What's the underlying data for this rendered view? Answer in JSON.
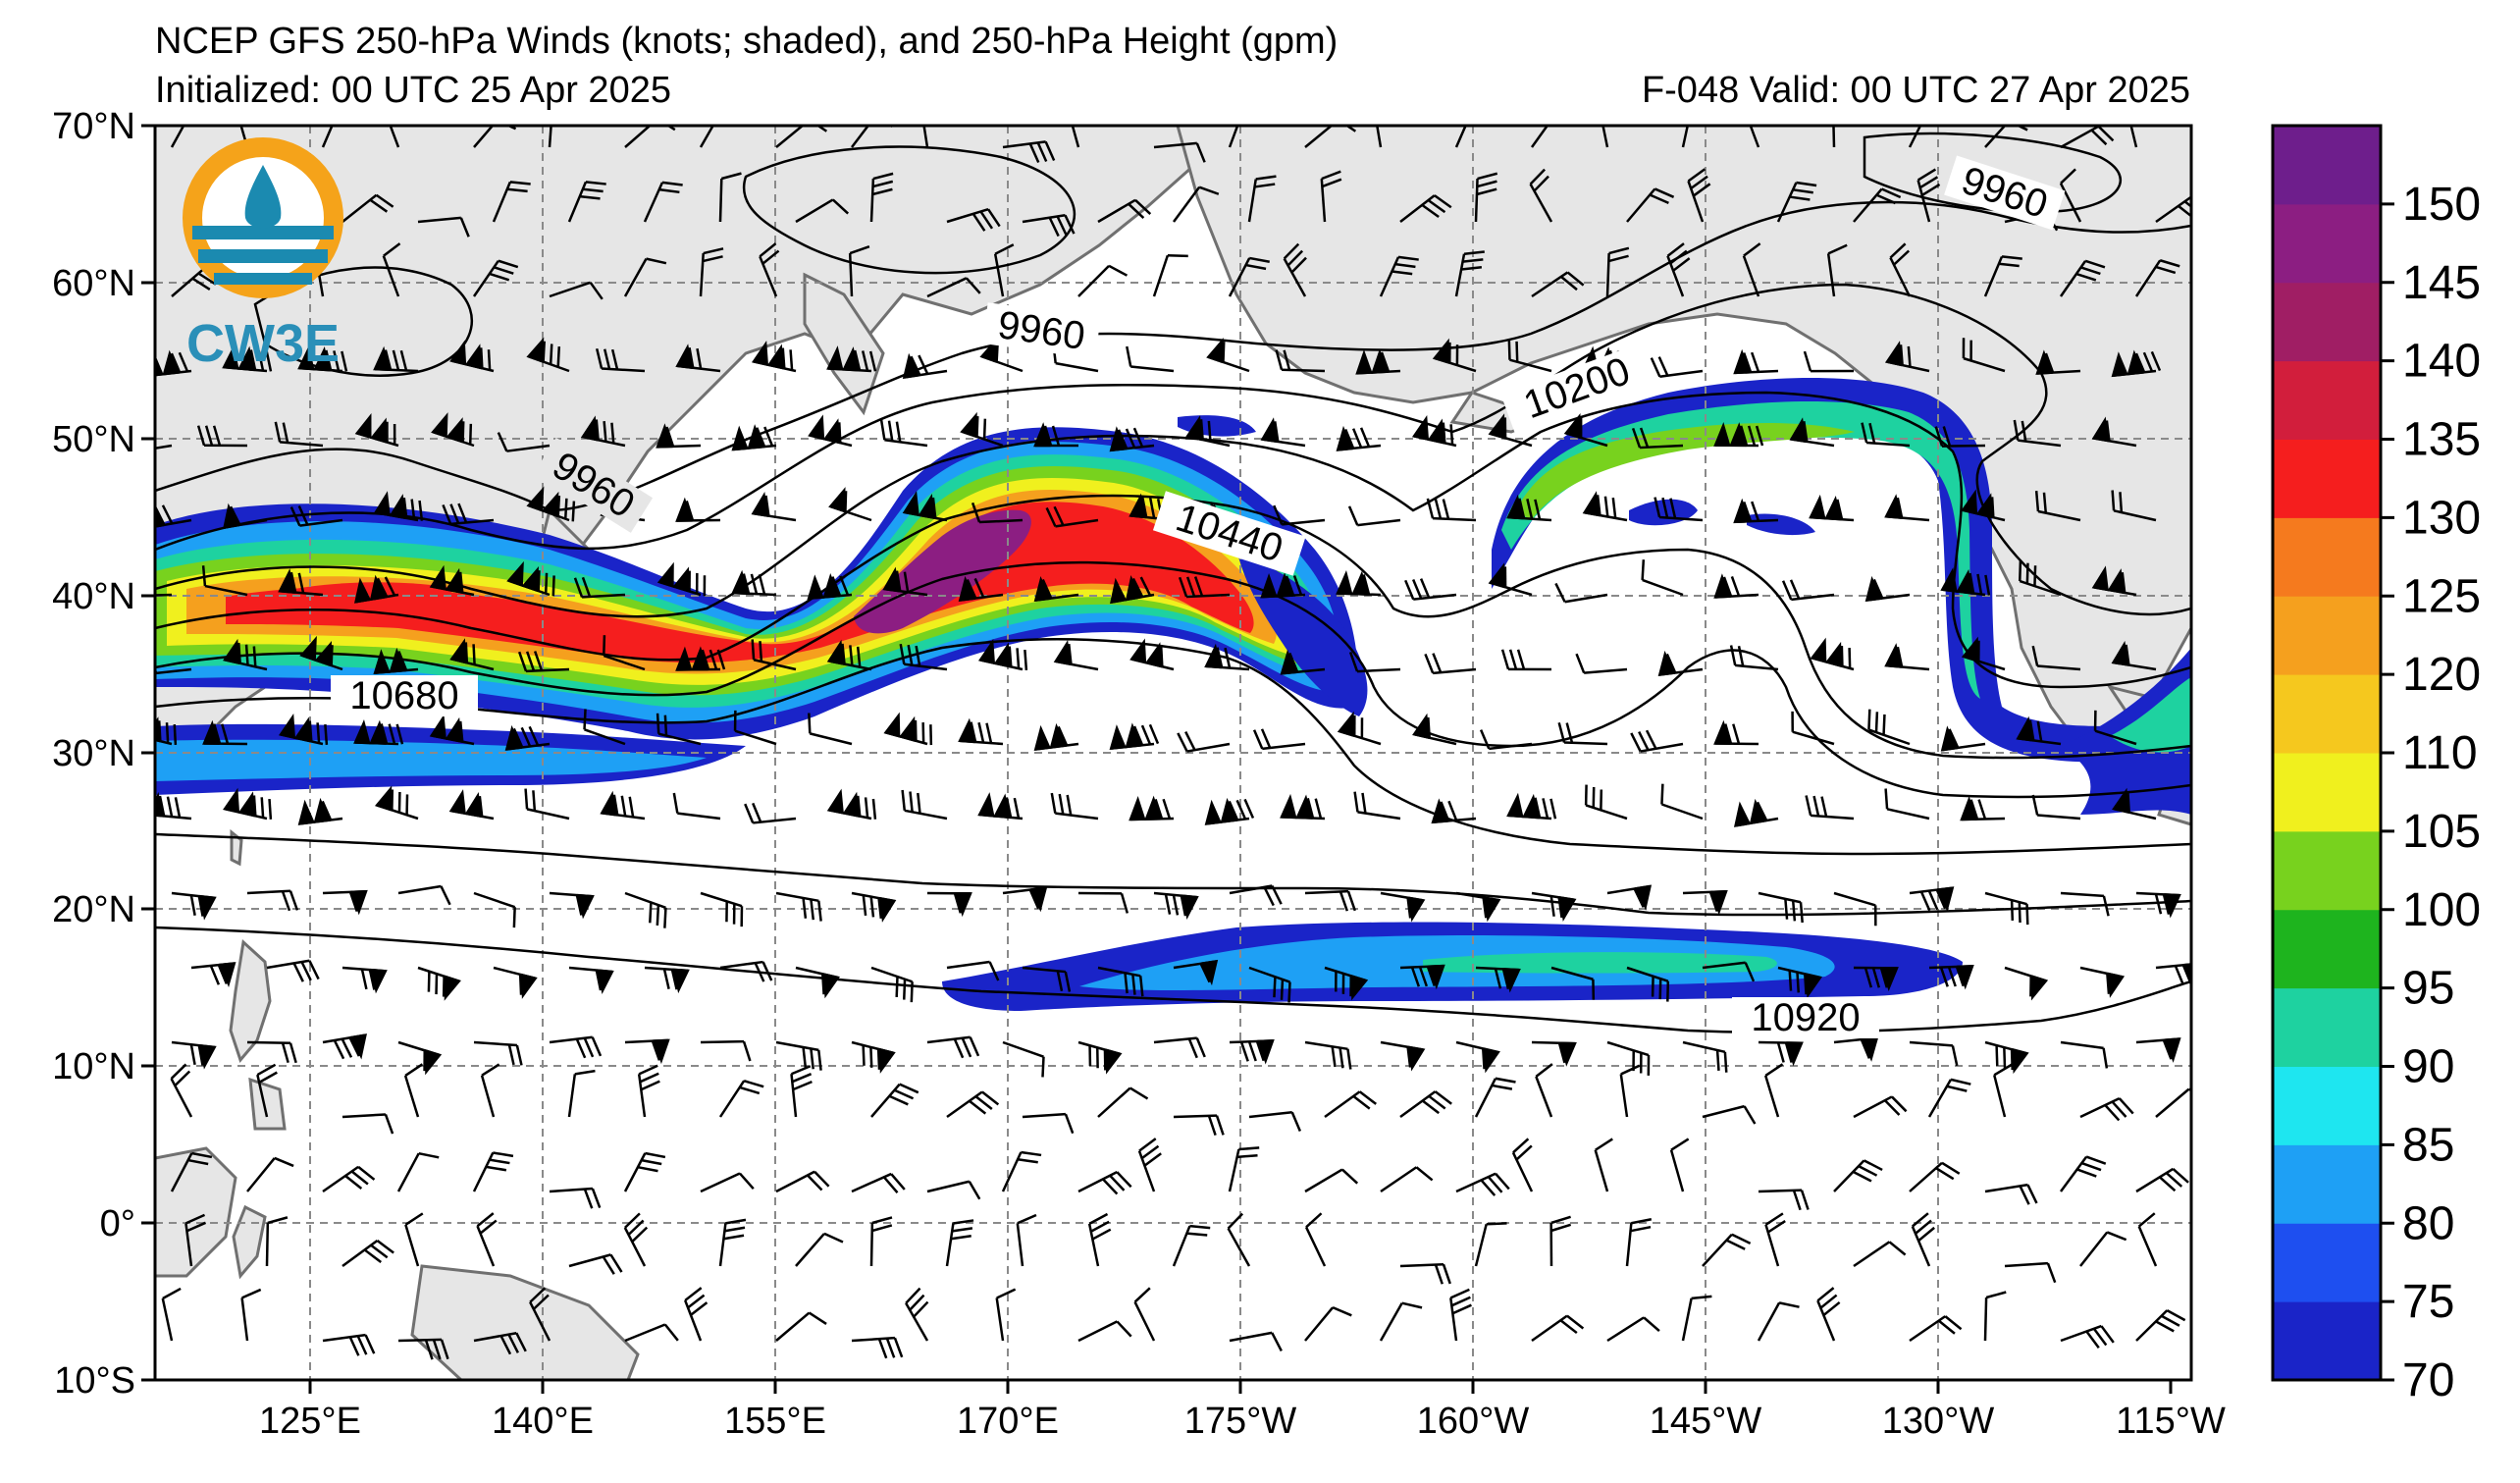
{
  "header": {
    "title": "NCEP GFS 250-hPa Winds (knots; shaded), and 250-hPa Height (gpm)",
    "initialized": "Initialized: 00 UTC 25 Apr 2025",
    "valid": "F-048  Valid: 00 UTC 27 Apr 2025"
  },
  "logo": {
    "text": "CW3E",
    "ring_color": "#f5a31a",
    "wave_color": "#1b8ab0"
  },
  "map": {
    "lon_labels": [
      "125°E",
      "140°E",
      "155°E",
      "170°E",
      "175°W",
      "160°W",
      "145°W",
      "130°W",
      "115°W"
    ],
    "lat_labels": [
      "70°N",
      "60°N",
      "50°N",
      "40°N",
      "30°N",
      "20°N",
      "10°N",
      "0°",
      "10°S"
    ],
    "contour_labels": [
      "9960",
      "9960",
      "9960",
      "10200",
      "10440",
      "10680",
      "10920"
    ],
    "land_color": "#e6e6e6",
    "coast_color": "#707070",
    "grid_color": "#8a8a8a"
  },
  "colorbar": {
    "ticks": [
      "70",
      "75",
      "80",
      "85",
      "90",
      "95",
      "100",
      "105",
      "110",
      "120",
      "125",
      "130",
      "135",
      "140",
      "145",
      "150"
    ],
    "colors": [
      "#1a24c8",
      "#1e4ff0",
      "#1ea0f5",
      "#1ee6f0",
      "#1ed2a0",
      "#1eb41e",
      "#78d21e",
      "#f0f01e",
      "#f5c81e",
      "#f5a01e",
      "#f57a1e",
      "#f51e1e",
      "#d21e3c",
      "#a01e64",
      "#8c1e82",
      "#6e1e8c"
    ]
  },
  "chart_data": {
    "type": "heatmap",
    "field": "250-hPa wind speed (knots)",
    "x_range": [
      "115°E",
      "115°W"
    ],
    "y_range": [
      "10°S",
      "70°N"
    ],
    "color_scale": {
      "min": 70,
      "max": 155,
      "ticks": [
        70,
        75,
        80,
        85,
        90,
        95,
        100,
        105,
        110,
        120,
        125,
        130,
        135,
        140,
        145,
        150
      ]
    },
    "height_contours_gpm": [
      9960,
      10200,
      10440,
      10680,
      10920
    ],
    "grid": true
  }
}
